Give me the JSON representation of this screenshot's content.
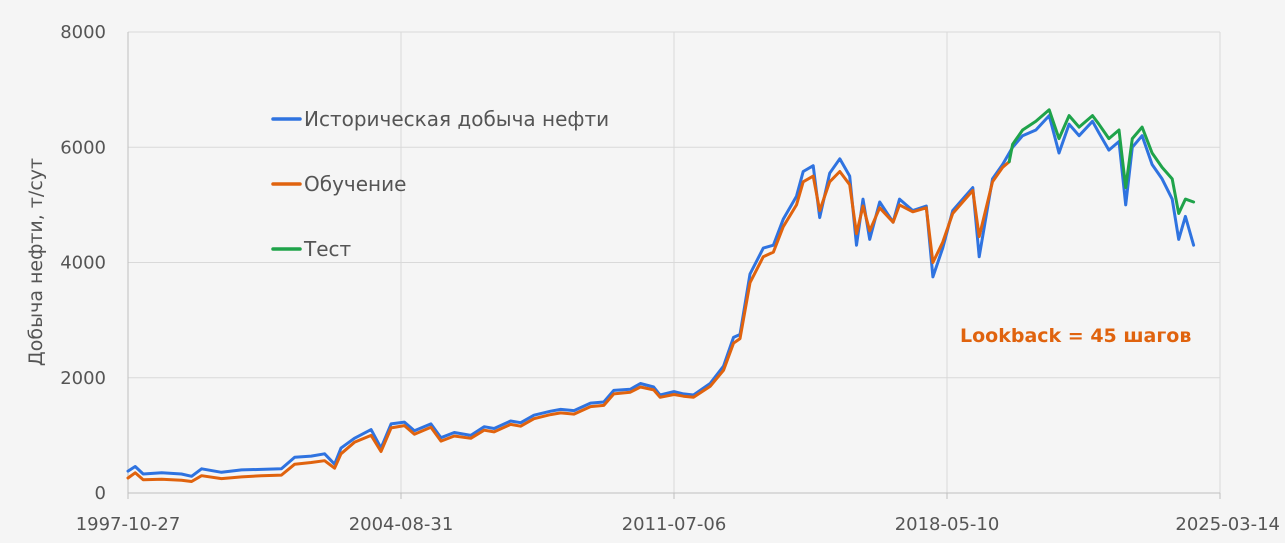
{
  "chart_data": {
    "type": "line",
    "title": "",
    "xlabel": "",
    "ylabel": "Добыча нефти, т/сут",
    "ylim": [
      0,
      8000
    ],
    "xlim": [
      "1997-10-27",
      "2025-03-14"
    ],
    "x_ticks": [
      "1997-10-27",
      "2004-08-31",
      "2011-07-06",
      "2018-05-10",
      "2025-03-14"
    ],
    "y_ticks": [
      "0",
      "2000",
      "4000",
      "6000",
      "8000"
    ],
    "grid": true,
    "legend_placement": "upper-left, inside plot",
    "annotation": "Lookback = 45 шагов",
    "annotation_color": "#e0630e",
    "series": [
      {
        "name": "Историческая добыча нефти",
        "color": "#2f73e0",
        "points": [
          [
            "1997-10-27",
            380
          ],
          [
            "1998-01-01",
            460
          ],
          [
            "1998-03-15",
            330
          ],
          [
            "1998-09-01",
            350
          ],
          [
            "1999-03-01",
            330
          ],
          [
            "1999-06-01",
            290
          ],
          [
            "1999-09-01",
            420
          ],
          [
            "2000-03-01",
            360
          ],
          [
            "2000-09-01",
            400
          ],
          [
            "2001-03-01",
            410
          ],
          [
            "2001-09-01",
            420
          ],
          [
            "2002-01-01",
            620
          ],
          [
            "2002-06-01",
            640
          ],
          [
            "2002-10-01",
            680
          ],
          [
            "2003-01-01",
            500
          ],
          [
            "2003-03-01",
            780
          ],
          [
            "2003-07-01",
            950
          ],
          [
            "2003-12-01",
            1100
          ],
          [
            "2004-03-01",
            780
          ],
          [
            "2004-06-01",
            1200
          ],
          [
            "2004-10-01",
            1230
          ],
          [
            "2005-01-01",
            1080
          ],
          [
            "2005-06-01",
            1200
          ],
          [
            "2005-09-01",
            960
          ],
          [
            "2006-01-01",
            1050
          ],
          [
            "2006-06-01",
            1000
          ],
          [
            "2006-10-01",
            1150
          ],
          [
            "2007-01-01",
            1120
          ],
          [
            "2007-06-01",
            1250
          ],
          [
            "2007-09-01",
            1220
          ],
          [
            "2008-01-01",
            1350
          ],
          [
            "2008-06-01",
            1420
          ],
          [
            "2008-09-01",
            1450
          ],
          [
            "2009-01-01",
            1430
          ],
          [
            "2009-06-01",
            1560
          ],
          [
            "2009-10-01",
            1580
          ],
          [
            "2010-01-01",
            1780
          ],
          [
            "2010-06-01",
            1800
          ],
          [
            "2010-09-01",
            1900
          ],
          [
            "2011-01-01",
            1840
          ],
          [
            "2011-03-01",
            1700
          ],
          [
            "2011-07-06",
            1760
          ],
          [
            "2011-10-01",
            1720
          ],
          [
            "2012-01-01",
            1700
          ],
          [
            "2012-06-01",
            1900
          ],
          [
            "2012-10-01",
            2200
          ],
          [
            "2013-01-01",
            2700
          ],
          [
            "2013-03-01",
            2750
          ],
          [
            "2013-06-01",
            3800
          ],
          [
            "2013-10-01",
            4250
          ],
          [
            "2014-01-01",
            4300
          ],
          [
            "2014-04-01",
            4750
          ],
          [
            "2014-08-01",
            5150
          ],
          [
            "2014-10-01",
            5580
          ],
          [
            "2015-01-01",
            5680
          ],
          [
            "2015-03-01",
            4780
          ],
          [
            "2015-06-01",
            5550
          ],
          [
            "2015-09-01",
            5800
          ],
          [
            "2015-12-01",
            5500
          ],
          [
            "2016-02-01",
            4300
          ],
          [
            "2016-04-01",
            5100
          ],
          [
            "2016-06-01",
            4400
          ],
          [
            "2016-09-01",
            5050
          ],
          [
            "2017-01-01",
            4700
          ],
          [
            "2017-03-01",
            5100
          ],
          [
            "2017-07-01",
            4900
          ],
          [
            "2017-11-01",
            4980
          ],
          [
            "2018-01-01",
            3750
          ],
          [
            "2018-04-01",
            4250
          ],
          [
            "2018-07-01",
            4900
          ],
          [
            "2018-10-01",
            5100
          ],
          [
            "2019-01-01",
            5300
          ],
          [
            "2019-03-01",
            4100
          ],
          [
            "2019-07-01",
            5450
          ],
          [
            "2019-10-01",
            5700
          ],
          [
            "2020-01-01",
            6000
          ],
          [
            "2020-04-01",
            6200
          ],
          [
            "2020-08-01",
            6300
          ],
          [
            "2020-12-01",
            6550
          ],
          [
            "2021-03-01",
            5900
          ],
          [
            "2021-06-01",
            6400
          ],
          [
            "2021-09-01",
            6200
          ],
          [
            "2022-01-01",
            6450
          ],
          [
            "2022-03-01",
            6250
          ],
          [
            "2022-06-01",
            5950
          ],
          [
            "2022-09-01",
            6100
          ],
          [
            "2022-11-01",
            5000
          ],
          [
            "2023-01-01",
            6000
          ],
          [
            "2023-04-01",
            6200
          ],
          [
            "2023-07-01",
            5700
          ],
          [
            "2023-10-01",
            5450
          ],
          [
            "2024-01-01",
            5100
          ],
          [
            "2024-03-01",
            4400
          ],
          [
            "2024-05-01",
            4800
          ],
          [
            "2024-07-15",
            4300
          ]
        ]
      },
      {
        "name": "Обучение",
        "color": "#e0630e",
        "points": [
          [
            "1997-10-27",
            260
          ],
          [
            "1998-01-01",
            350
          ],
          [
            "1998-03-15",
            230
          ],
          [
            "1998-09-01",
            240
          ],
          [
            "1999-03-01",
            220
          ],
          [
            "1999-06-01",
            200
          ],
          [
            "1999-09-01",
            300
          ],
          [
            "2000-03-01",
            250
          ],
          [
            "2000-09-01",
            280
          ],
          [
            "2001-03-01",
            300
          ],
          [
            "2001-09-01",
            310
          ],
          [
            "2002-01-01",
            500
          ],
          [
            "2002-06-01",
            530
          ],
          [
            "2002-10-01",
            560
          ],
          [
            "2003-01-01",
            430
          ],
          [
            "2003-03-01",
            680
          ],
          [
            "2003-07-01",
            880
          ],
          [
            "2003-12-01",
            1000
          ],
          [
            "2004-03-01",
            720
          ],
          [
            "2004-06-01",
            1130
          ],
          [
            "2004-10-01",
            1170
          ],
          [
            "2005-01-01",
            1020
          ],
          [
            "2005-06-01",
            1140
          ],
          [
            "2005-09-01",
            900
          ],
          [
            "2006-01-01",
            990
          ],
          [
            "2006-06-01",
            950
          ],
          [
            "2006-10-01",
            1090
          ],
          [
            "2007-01-01",
            1060
          ],
          [
            "2007-06-01",
            1190
          ],
          [
            "2007-09-01",
            1160
          ],
          [
            "2008-01-01",
            1290
          ],
          [
            "2008-06-01",
            1360
          ],
          [
            "2008-09-01",
            1390
          ],
          [
            "2009-01-01",
            1370
          ],
          [
            "2009-06-01",
            1500
          ],
          [
            "2009-10-01",
            1520
          ],
          [
            "2010-01-01",
            1720
          ],
          [
            "2010-06-01",
            1750
          ],
          [
            "2010-09-01",
            1840
          ],
          [
            "2011-01-01",
            1790
          ],
          [
            "2011-03-01",
            1660
          ],
          [
            "2011-07-06",
            1710
          ],
          [
            "2011-10-01",
            1680
          ],
          [
            "2012-01-01",
            1660
          ],
          [
            "2012-06-01",
            1850
          ],
          [
            "2012-10-01",
            2130
          ],
          [
            "2013-01-01",
            2600
          ],
          [
            "2013-03-01",
            2680
          ],
          [
            "2013-06-01",
            3650
          ],
          [
            "2013-10-01",
            4100
          ],
          [
            "2014-01-01",
            4180
          ],
          [
            "2014-04-01",
            4620
          ],
          [
            "2014-08-01",
            5000
          ],
          [
            "2014-10-01",
            5400
          ],
          [
            "2015-01-01",
            5500
          ],
          [
            "2015-03-01",
            4900
          ],
          [
            "2015-06-01",
            5400
          ],
          [
            "2015-09-01",
            5580
          ],
          [
            "2015-12-01",
            5350
          ],
          [
            "2016-02-01",
            4500
          ],
          [
            "2016-04-01",
            4980
          ],
          [
            "2016-06-01",
            4550
          ],
          [
            "2016-09-01",
            4950
          ],
          [
            "2017-01-01",
            4700
          ],
          [
            "2017-03-01",
            5000
          ],
          [
            "2017-07-01",
            4880
          ],
          [
            "2017-11-01",
            4950
          ],
          [
            "2018-01-01",
            4000
          ],
          [
            "2018-04-01",
            4350
          ],
          [
            "2018-07-01",
            4850
          ],
          [
            "2018-10-01",
            5050
          ],
          [
            "2019-01-01",
            5250
          ],
          [
            "2019-03-01",
            4450
          ],
          [
            "2019-07-01",
            5400
          ],
          [
            "2019-10-01",
            5650
          ],
          [
            "2019-12-01",
            5750
          ]
        ]
      },
      {
        "name": "Тест",
        "color": "#1fa34a",
        "points": [
          [
            "2019-12-01",
            5750
          ],
          [
            "2020-01-01",
            6050
          ],
          [
            "2020-04-01",
            6300
          ],
          [
            "2020-08-01",
            6450
          ],
          [
            "2020-12-01",
            6650
          ],
          [
            "2021-03-01",
            6150
          ],
          [
            "2021-06-01",
            6550
          ],
          [
            "2021-09-01",
            6350
          ],
          [
            "2022-01-01",
            6550
          ],
          [
            "2022-03-01",
            6400
          ],
          [
            "2022-06-01",
            6150
          ],
          [
            "2022-09-01",
            6300
          ],
          [
            "2022-11-01",
            5300
          ],
          [
            "2023-01-01",
            6150
          ],
          [
            "2023-04-01",
            6350
          ],
          [
            "2023-07-01",
            5900
          ],
          [
            "2023-10-01",
            5650
          ],
          [
            "2024-01-01",
            5450
          ],
          [
            "2024-03-01",
            4850
          ],
          [
            "2024-05-01",
            5100
          ],
          [
            "2024-07-15",
            5050
          ]
        ]
      }
    ]
  }
}
